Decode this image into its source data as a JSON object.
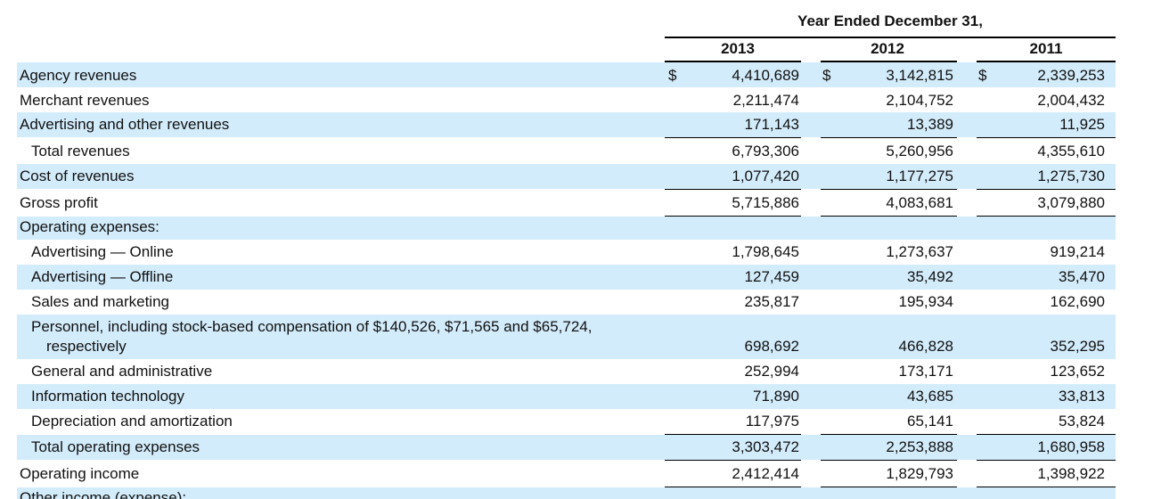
{
  "header": {
    "title": "Year Ended December 31,",
    "years": [
      "2013",
      "2012",
      "2011"
    ]
  },
  "rows": [
    {
      "label": "Agency revenues",
      "v2013": "4,410,689",
      "v2012": "3,142,815",
      "v2011": "2,339,253",
      "currency": "$"
    },
    {
      "label": "Merchant revenues",
      "v2013": "2,211,474",
      "v2012": "2,104,752",
      "v2011": "2,004,432"
    },
    {
      "label": "Advertising and other revenues",
      "v2013": "171,143",
      "v2012": "13,389",
      "v2011": "11,925"
    },
    {
      "label": "Total revenues",
      "v2013": "6,793,306",
      "v2012": "5,260,956",
      "v2011": "4,355,610"
    },
    {
      "label": "Cost of revenues",
      "v2013": "1,077,420",
      "v2012": "1,177,275",
      "v2011": "1,275,730"
    },
    {
      "label": "Gross profit",
      "v2013": "5,715,886",
      "v2012": "4,083,681",
      "v2011": "3,079,880"
    },
    {
      "label": "Operating expenses:",
      "v2013": "",
      "v2012": "",
      "v2011": ""
    },
    {
      "label": "Advertising — Online",
      "v2013": "1,798,645",
      "v2012": "1,273,637",
      "v2011": "919,214"
    },
    {
      "label": "Advertising — Offline",
      "v2013": "127,459",
      "v2012": "35,492",
      "v2011": "35,470"
    },
    {
      "label": "Sales and marketing",
      "v2013": "235,817",
      "v2012": "195,934",
      "v2011": "162,690"
    },
    {
      "label": "Personnel, including stock-based compensation of $140,526, $71,565 and $65,724,",
      "label2": "respectively",
      "v2013": "698,692",
      "v2012": "466,828",
      "v2011": "352,295"
    },
    {
      "label": "General and administrative",
      "v2013": "252,994",
      "v2012": "173,171",
      "v2011": "123,652"
    },
    {
      "label": "Information technology",
      "v2013": "71,890",
      "v2012": "43,685",
      "v2011": "33,813"
    },
    {
      "label": "Depreciation and amortization",
      "v2013": "117,975",
      "v2012": "65,141",
      "v2011": "53,824"
    },
    {
      "label": "Total operating expenses",
      "v2013": "3,303,472",
      "v2012": "2,253,888",
      "v2011": "1,680,958"
    },
    {
      "label": "Operating income",
      "v2013": "2,412,414",
      "v2012": "1,829,793",
      "v2011": "1,398,922"
    },
    {
      "label": "Other income (expense):",
      "v2013": "",
      "v2012": "",
      "v2011": ""
    }
  ]
}
